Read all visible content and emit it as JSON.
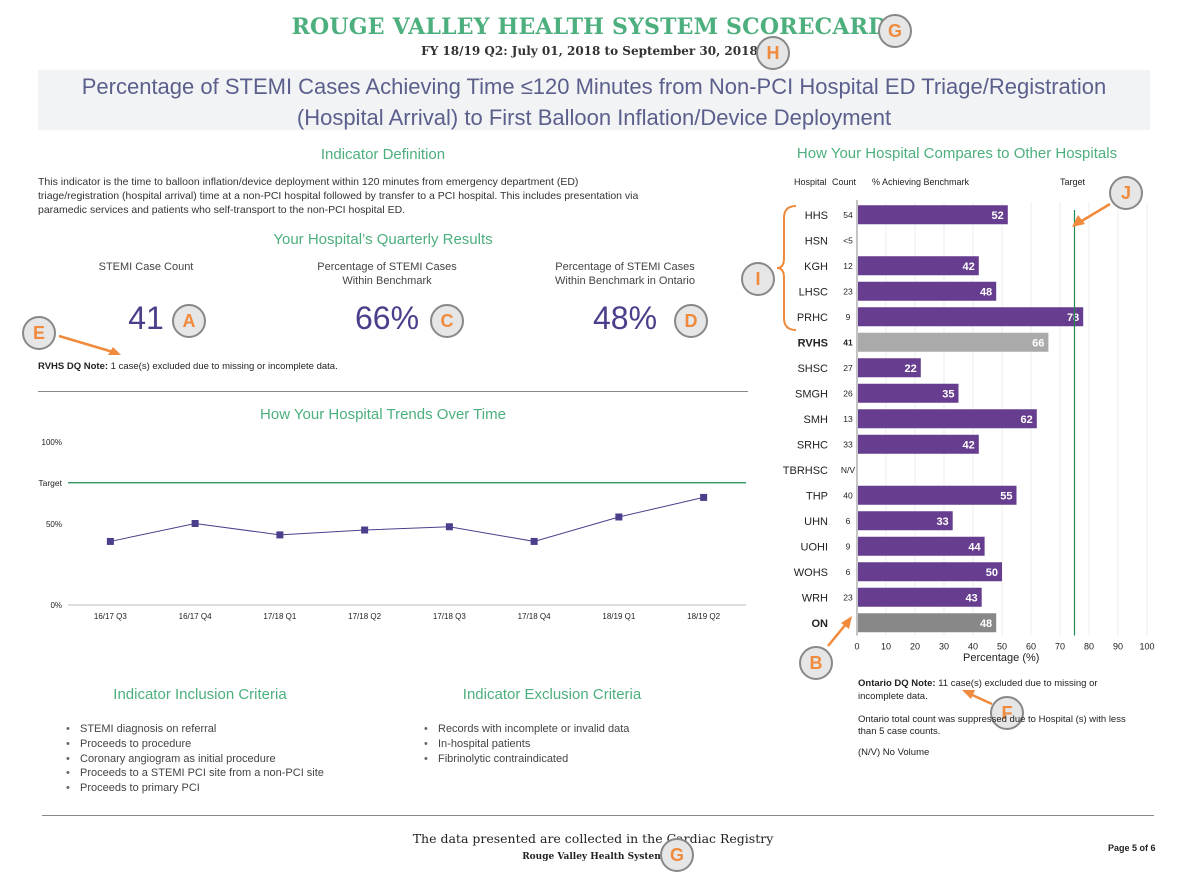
{
  "header": {
    "title": "ROUGE VALLEY HEALTH SYSTEM SCORECARD",
    "subtitle": "FY 18/19 Q2: July 01, 2018 to September 30, 2018",
    "indicator_title_line1": "Percentage of STEMI Cases Achieving Time ≤120 Minutes from Non-PCI Hospital ED Triage/Registration",
    "indicator_title_line2": "(Hospital Arrival) to First Balloon Inflation/Device Deployment"
  },
  "definition": {
    "heading": "Indicator Definition",
    "text_line1": "This indicator is the time to balloon inflation/device deployment within 120 minutes from emergency department (ED)",
    "text_line2": "triage/registration (hospital arrival) time at a non-PCI hospital followed by transfer to a PCI hospital. This includes presentation via",
    "text_line3": "paramedic services and patients who self-transport to the non-PCI hospital ED."
  },
  "quarterly": {
    "heading": "Your Hospital’s Quarterly Results",
    "kpis": [
      {
        "label_line1": "STEMI Case Count",
        "label_line2": "",
        "value": "41",
        "badge": "A"
      },
      {
        "label_line1": "Percentage of STEMI Cases",
        "label_line2": "Within Benchmark",
        "value": "66%",
        "badge": "C"
      },
      {
        "label_line1": "Percentage of STEMI Cases",
        "label_line2": "Within Benchmark in Ontario",
        "value": "48%",
        "badge": "D"
      }
    ],
    "dq_note_label": "RVHS DQ Note:",
    "dq_note_text": " 1 case(s) excluded due to missing or incomplete data."
  },
  "badges": {
    "title_badge": "G",
    "subtitle_badge": "H",
    "dq_badge": "E",
    "compare_I": "I",
    "compare_J": "J",
    "compare_B": "B",
    "compare_F": "F",
    "footer_badge": "G"
  },
  "trend": {
    "heading": "How Your Hospital Trends Over Time",
    "y_top_label": "100%",
    "y_target_label": "Target",
    "y_mid_label": "50%",
    "y_bottom_label": "0%"
  },
  "inclusion": {
    "heading": "Indicator Inclusion Criteria",
    "items": [
      "STEMI diagnosis on referral",
      "Proceeds to procedure",
      "Coronary angiogram as initial procedure",
      "Proceeds to a STEMI PCI site from a non-PCI site",
      "Proceeds to primary PCI"
    ]
  },
  "exclusion": {
    "heading": "Indicator Exclusion Criteria",
    "items": [
      "Records with incomplete or invalid data",
      "In-hospital patients",
      "Fibrinolytic contraindicated"
    ]
  },
  "compare": {
    "heading": "How Your Hospital Compares to Other Hospitals",
    "col_hospital": "Hospital",
    "col_count": "Count",
    "col_pct": "% Achieving Benchmark",
    "col_target": "Target",
    "x_axis_label": "Percentage (%)",
    "ontario_note_label": "Ontario DQ Note:",
    "ontario_note_text": " 11 case(s) excluded due to missing or",
    "ontario_note_text2": "incomplete data.",
    "suppress_note_line1": "Ontario total count was suppressed due to Hospital (s) with less",
    "suppress_note_line2": "than 5 case counts.",
    "nv_note": "(N/V) No Volume"
  },
  "colors": {
    "accent_green": "#4caf7d",
    "bar_purple": "#673d8f",
    "bar_own": "#aaaaaa",
    "bar_ontario": "#888888",
    "kpi_value": "#4b3f8c",
    "badge_text": "#f08a3c"
  },
  "chart_data": [
    {
      "type": "line",
      "title": "How Your Hospital Trends Over Time",
      "categories": [
        "16/17 Q3",
        "16/17 Q4",
        "17/18 Q1",
        "17/18 Q2",
        "17/18 Q3",
        "17/18 Q4",
        "18/19 Q1",
        "18/19 Q2"
      ],
      "series": [
        {
          "name": "RVHS",
          "values": [
            39,
            50,
            43,
            46,
            48,
            39,
            54,
            66
          ]
        }
      ],
      "target": 75,
      "ylim": [
        0,
        100
      ],
      "ytick_labels": [
        "0%",
        "50%",
        "100%"
      ]
    },
    {
      "type": "bar",
      "orientation": "horizontal",
      "title": "How Your Hospital Compares to Other Hospitals",
      "xlabel": "Percentage (%)",
      "xlim": [
        0,
        100
      ],
      "xticks": [
        0,
        10,
        20,
        30,
        40,
        50,
        60,
        70,
        80,
        90,
        100
      ],
      "target": 75,
      "rows": [
        {
          "hospital": "HHS",
          "count": "54",
          "value": 52,
          "kind": "other"
        },
        {
          "hospital": "HSN",
          "count": "<5",
          "value": null,
          "kind": "other"
        },
        {
          "hospital": "KGH",
          "count": "12",
          "value": 42,
          "kind": "other"
        },
        {
          "hospital": "LHSC",
          "count": "23",
          "value": 48,
          "kind": "other"
        },
        {
          "hospital": "PRHC",
          "count": "9",
          "value": 78,
          "kind": "other"
        },
        {
          "hospital": "RVHS",
          "count": "41",
          "value": 66,
          "kind": "own"
        },
        {
          "hospital": "SHSC",
          "count": "27",
          "value": 22,
          "kind": "other"
        },
        {
          "hospital": "SMGH",
          "count": "26",
          "value": 35,
          "kind": "other"
        },
        {
          "hospital": "SMH",
          "count": "13",
          "value": 62,
          "kind": "other"
        },
        {
          "hospital": "SRHC",
          "count": "33",
          "value": 42,
          "kind": "other"
        },
        {
          "hospital": "TBRHSC",
          "count": "N/V",
          "value": null,
          "kind": "other"
        },
        {
          "hospital": "THP",
          "count": "40",
          "value": 55,
          "kind": "other"
        },
        {
          "hospital": "UHN",
          "count": "6",
          "value": 33,
          "kind": "other"
        },
        {
          "hospital": "UOHI",
          "count": "9",
          "value": 44,
          "kind": "other"
        },
        {
          "hospital": "WOHS",
          "count": "6",
          "value": 50,
          "kind": "other"
        },
        {
          "hospital": "WRH",
          "count": "23",
          "value": 43,
          "kind": "other"
        },
        {
          "hospital": "ON",
          "count": "",
          "value": 48,
          "kind": "ontario"
        }
      ]
    }
  ],
  "footer": {
    "line1": "The data presented are collected in the Cardiac Registry",
    "line2": "Rouge Valley Health System",
    "page": "Page 5 of 6"
  }
}
